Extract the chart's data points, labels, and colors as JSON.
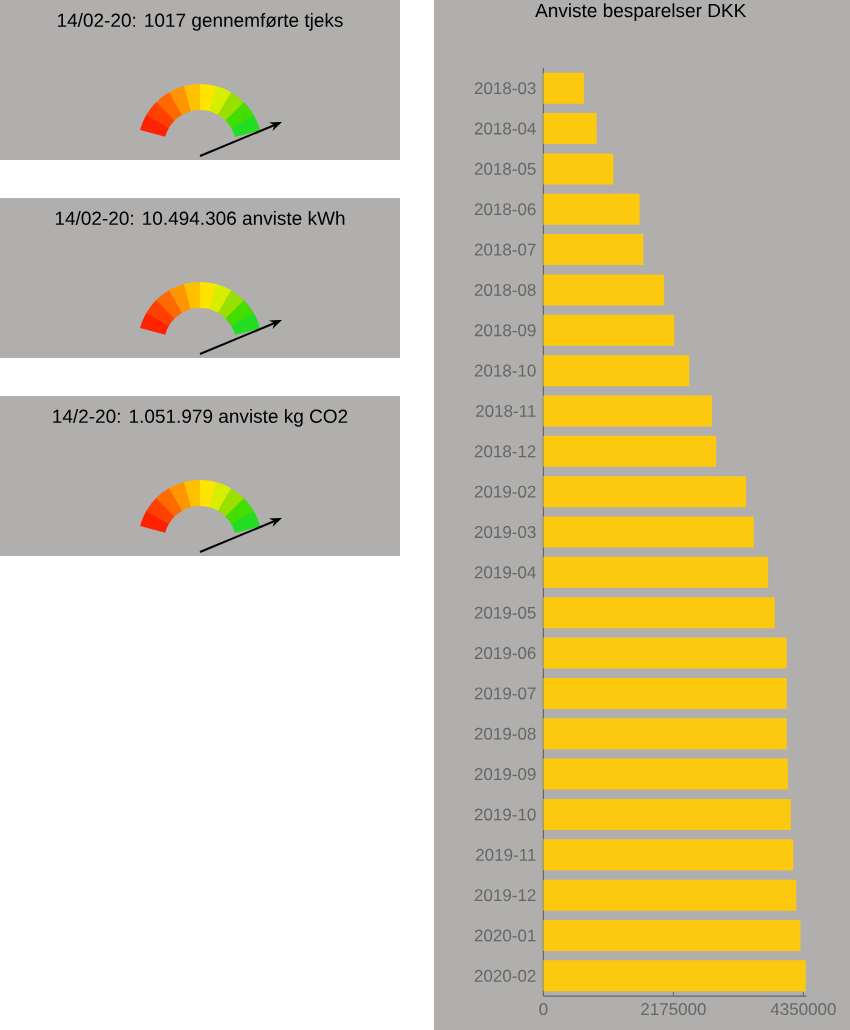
{
  "chart_data": [
    {
      "type": "other",
      "title": "14/02-20: 1017 gennemførte tjeks"
    },
    {
      "type": "other",
      "title": "14/02-20: 10.494.306 anviste kWh"
    },
    {
      "type": "other",
      "title": "14/2-20: 1.051.979 anviste kg CO2"
    },
    {
      "type": "bar",
      "orientation": "horizontal",
      "title": "Anviste besparelser DKK",
      "color": "#fdc90f",
      "categories": [
        "2018-03",
        "2018-04",
        "2018-05",
        "2018-06",
        "2018-07",
        "2018-08",
        "2018-09",
        "2018-10",
        "2018-11",
        "2018-12",
        "2019-02",
        "2019-03",
        "2019-04",
        "2019-05",
        "2019-06",
        "2019-07",
        "2019-08",
        "2019-09",
        "2019-10",
        "2019-11",
        "2019-12",
        "2020-01",
        "2020-02"
      ],
      "values": [
        680000,
        890000,
        1170000,
        1610000,
        1670000,
        2020000,
        2190000,
        2440000,
        2820000,
        2890000,
        3390000,
        3520000,
        3760000,
        3870000,
        4070000,
        4070000,
        4070000,
        4090000,
        4140000,
        4180000,
        4230000,
        4300000,
        4390000
      ],
      "xlim": [
        0,
        4400000
      ],
      "xticks": [
        0,
        2175000,
        4350000
      ]
    }
  ]
}
